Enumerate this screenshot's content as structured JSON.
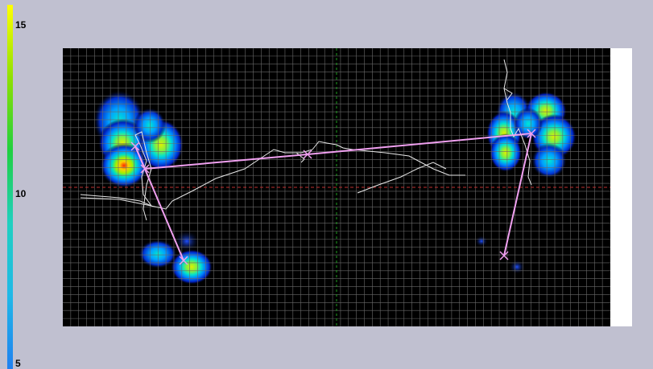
{
  "color_scale": {
    "labels": {
      "max": "15",
      "mid": "10",
      "min": "5"
    },
    "gradient_colors": [
      "#ffff00",
      "#8fe000",
      "#20d040",
      "#20d0c0",
      "#20b8e8",
      "#2080f0"
    ]
  },
  "heatmap": {
    "background": "#000000",
    "grid_color": "#6a6a6a",
    "grid_divisions_x": 69,
    "grid_divisions_y": 35,
    "center_line_color_h": "#c03030",
    "center_line_color_v": "#20a020",
    "path_color": "#e8e8e8",
    "link_color": "#f0a0f0",
    "marker_color": "#f0a0f0"
  }
}
